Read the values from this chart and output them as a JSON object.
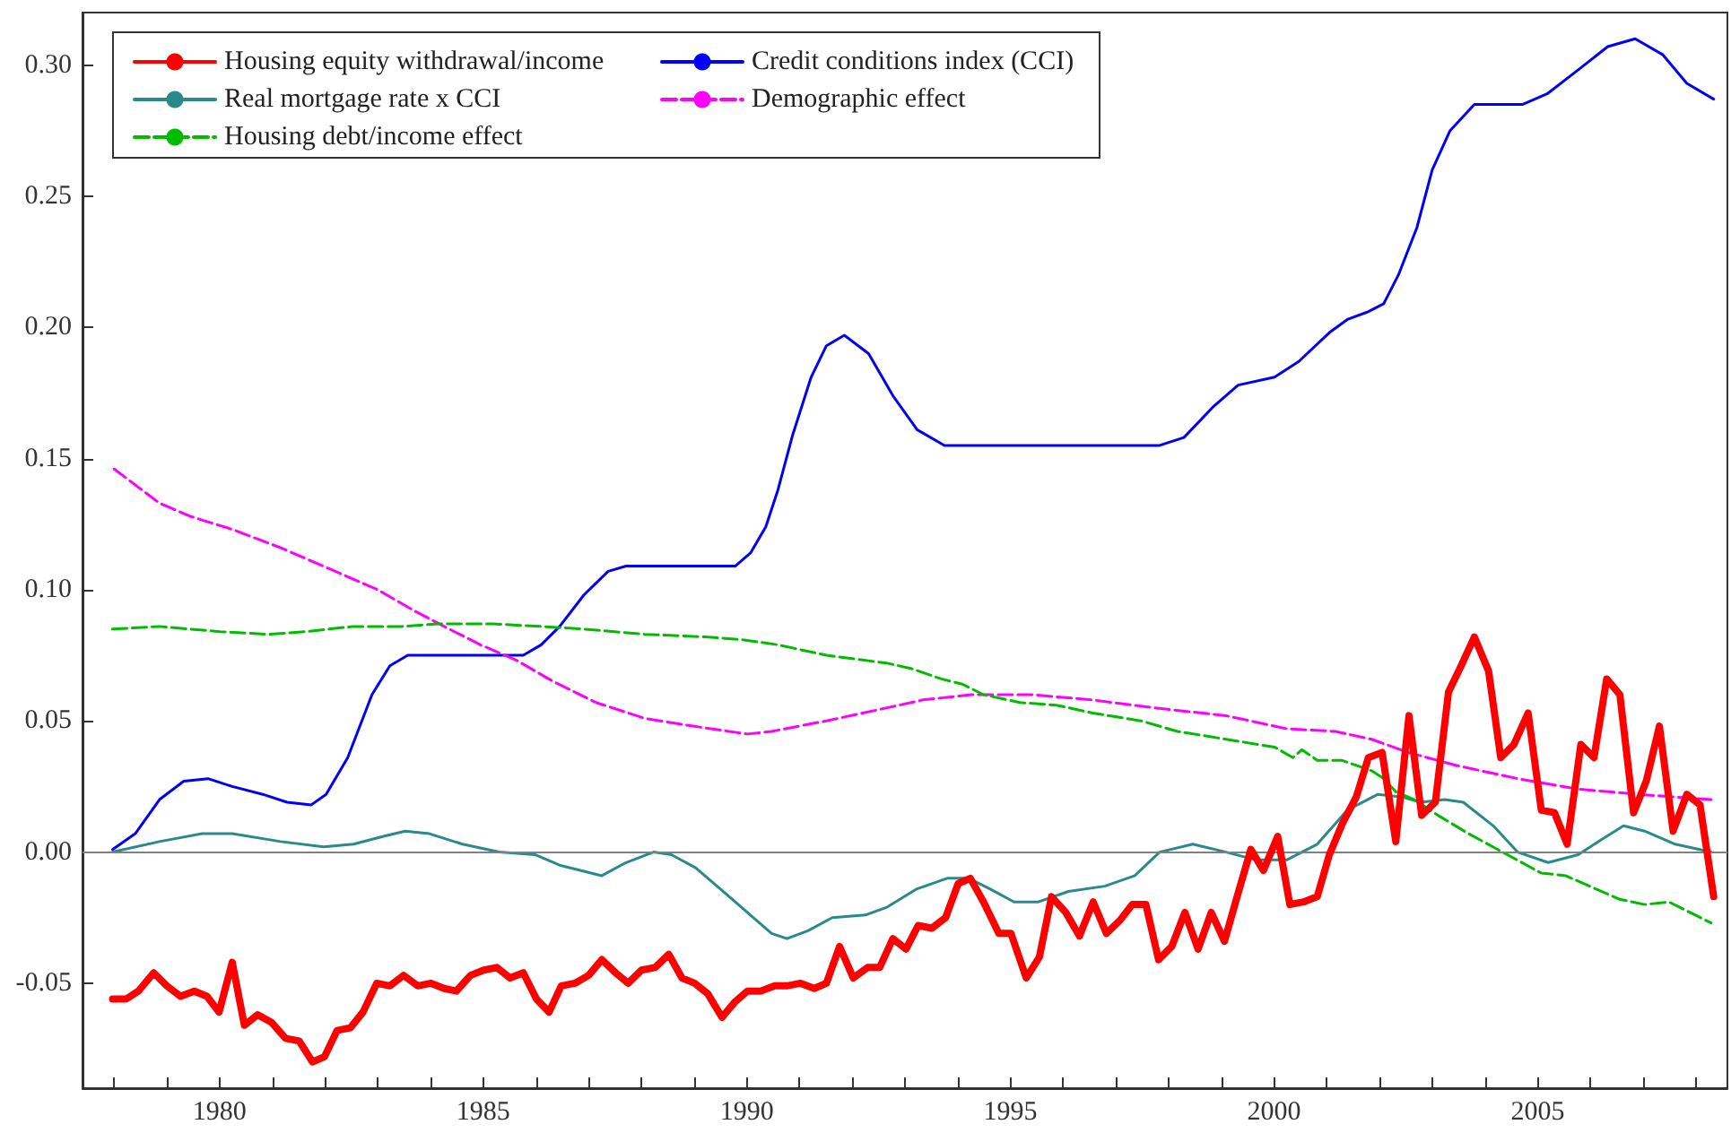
{
  "chart_data": {
    "type": "line",
    "xlim": [
      1977.4,
      2008.6
    ],
    "xticks": [
      {
        "value": 1978,
        "label": null
      },
      {
        "value": 1979,
        "label": null
      },
      1980,
      {
        "value": 1981,
        "label": null
      },
      {
        "value": 1982,
        "label": null
      },
      {
        "value": 1983,
        "label": null
      },
      {
        "value": 1984,
        "label": null
      },
      1985,
      {
        "value": 1986,
        "label": null
      },
      {
        "value": 1987,
        "label": null
      },
      {
        "value": 1988,
        "label": null
      },
      {
        "value": 1989,
        "label": null
      },
      1990,
      {
        "value": 1991,
        "label": null
      },
      {
        "value": 1992,
        "label": null
      },
      {
        "value": 1993,
        "label": null
      },
      {
        "value": 1994,
        "label": null
      },
      1995,
      {
        "value": 1996,
        "label": null
      },
      {
        "value": 1997,
        "label": null
      },
      {
        "value": 1998,
        "label": null
      },
      {
        "value": 1999,
        "label": null
      },
      2000,
      {
        "value": 2001,
        "label": null
      },
      {
        "value": 2002,
        "label": null
      },
      {
        "value": 2003,
        "label": null
      },
      {
        "value": 2004,
        "label": null
      },
      2005,
      {
        "value": 2006,
        "label": null
      },
      {
        "value": 2007,
        "label": null
      },
      {
        "value": 2008,
        "label": null
      }
    ],
    "ylim": [
      -0.09,
      0.32
    ],
    "yticks": [
      {
        "value": -0.05,
        "label": "-0.05"
      },
      {
        "value": 0,
        "label": "0.00"
      },
      {
        "value": 0.05,
        "label": "0.05"
      },
      {
        "value": 0.1,
        "label": "0.10"
      },
      {
        "value": 0.15,
        "label": "0.15"
      },
      {
        "value": 0.2,
        "label": "0.20"
      },
      {
        "value": 0.25,
        "label": "0.25"
      },
      {
        "value": 0.3,
        "label": "0.30"
      }
    ],
    "grid": false,
    "legend": "top left",
    "marker": "none",
    "ref_lines": [
      {
        "axis": "y",
        "value": 0,
        "color": "#808080"
      }
    ],
    "series": [
      {
        "name": "Housing equity withdrawal/income",
        "color": "#ff0000",
        "line_style": "solid",
        "x": [
          1977.97,
          1978.23,
          1978.46,
          1978.75,
          1979.0,
          1979.26,
          1979.52,
          1979.76,
          1979.99,
          1980.24,
          1980.47,
          1980.72,
          1980.99,
          1981.25,
          1981.51,
          1981.76,
          1981.99,
          1982.23,
          1982.48,
          1982.72,
          1982.98,
          1983.23,
          1983.49,
          1983.76,
          1984.01,
          1984.26,
          1984.49,
          1984.76,
          1985.01,
          1985.26,
          1985.51,
          1985.76,
          1986.01,
          1986.25,
          1986.48,
          1986.74,
          1987.0,
          1987.25,
          1987.51,
          1987.75,
          1988.0,
          1988.26,
          1988.52,
          1988.77,
          1989.01,
          1989.26,
          1989.53,
          1989.78,
          1990.01,
          1990.26,
          1990.53,
          1990.76,
          1991.02,
          1991.28,
          1991.51,
          1991.76,
          1992.02,
          1992.29,
          1992.52,
          1992.77,
          1993.02,
          1993.25,
          1993.51,
          1993.77,
          1994.01,
          1994.24,
          1994.49,
          1994.78,
          1995.01,
          1995.3,
          1995.55,
          1995.78,
          1996.05,
          1996.31,
          1996.57,
          1996.82,
          1997.08,
          1997.31,
          1997.57,
          1997.81,
          1998.06,
          1998.31,
          1998.56,
          1998.81,
          1999.06,
          1999.3,
          1999.56,
          1999.8,
          2000.07,
          2000.3,
          2000.56,
          2000.82,
          2001.05,
          2001.3,
          2001.56,
          2001.79,
          2002.05,
          2002.31,
          2002.56,
          2002.8,
          2003.06,
          2003.31,
          2003.55,
          2003.8,
          2004.07,
          2004.3,
          2004.55,
          2004.82,
          2005.07,
          2005.32,
          2005.56,
          2005.82,
          2006.07,
          2006.31,
          2006.56,
          2006.82,
          2007.06,
          2007.31,
          2007.57,
          2007.83,
          2008.08,
          2008.34
        ],
        "values": [
          -0.056,
          -0.056,
          -0.053,
          -0.046,
          -0.051,
          -0.055,
          -0.053,
          -0.055,
          -0.061,
          -0.042,
          -0.066,
          -0.062,
          -0.065,
          -0.071,
          -0.072,
          -0.08,
          -0.078,
          -0.068,
          -0.067,
          -0.061,
          -0.05,
          -0.051,
          -0.047,
          -0.051,
          -0.05,
          -0.052,
          -0.053,
          -0.047,
          -0.045,
          -0.044,
          -0.048,
          -0.046,
          -0.056,
          -0.061,
          -0.051,
          -0.05,
          -0.047,
          -0.041,
          -0.046,
          -0.05,
          -0.045,
          -0.044,
          -0.039,
          -0.048,
          -0.05,
          -0.054,
          -0.063,
          -0.057,
          -0.053,
          -0.053,
          -0.051,
          -0.051,
          -0.05,
          -0.052,
          -0.05,
          -0.036,
          -0.048,
          -0.044,
          -0.044,
          -0.033,
          -0.037,
          -0.028,
          -0.029,
          -0.025,
          -0.012,
          -0.01,
          -0.019,
          -0.031,
          -0.031,
          -0.048,
          -0.04,
          -0.017,
          -0.023,
          -0.032,
          -0.019,
          -0.031,
          -0.026,
          -0.02,
          -0.02,
          -0.041,
          -0.036,
          -0.023,
          -0.037,
          -0.023,
          -0.034,
          -0.017,
          0.001,
          -0.007,
          0.006,
          -0.02,
          -0.019,
          -0.017,
          -0.001,
          0.011,
          0.021,
          0.036,
          0.038,
          0.004,
          0.052,
          0.014,
          0.019,
          0.061,
          0.071,
          0.082,
          0.069,
          0.036,
          0.041,
          0.053,
          0.016,
          0.015,
          0.003,
          0.041,
          0.036,
          0.066,
          0.06,
          0.015,
          0.027,
          0.048,
          0.008,
          0.022,
          0.018,
          -0.017
        ]
      },
      {
        "name": "Credit conditions index (CCI)",
        "color": "#0000ff",
        "line_style": "solid",
        "x": [
          1977.97,
          1978.4,
          1978.86,
          1979.32,
          1979.78,
          1980.24,
          1980.82,
          1981.28,
          1981.74,
          1982.02,
          1982.43,
          1982.89,
          1983.23,
          1983.57,
          1984.15,
          1985.76,
          1986.1,
          1986.45,
          1986.91,
          1987.37,
          1987.71,
          1989.78,
          1990.07,
          1990.36,
          1990.59,
          1990.87,
          1991.22,
          1991.51,
          1991.85,
          1992.31,
          1992.77,
          1993.23,
          1993.75,
          1997.83,
          1998.29,
          1998.86,
          1999.32,
          2000.01,
          2000.47,
          2001.05,
          2001.39,
          2001.79,
          2002.08,
          2002.36,
          2002.71,
          2003.0,
          2003.34,
          2003.8,
          2004.72,
          2005.18,
          2005.76,
          2006.33,
          2006.85,
          2007.37,
          2007.83,
          2008.34
        ],
        "values": [
          0.001,
          0.007,
          0.02,
          0.027,
          0.028,
          0.025,
          0.022,
          0.019,
          0.018,
          0.022,
          0.036,
          0.06,
          0.071,
          0.075,
          0.075,
          0.075,
          0.079,
          0.086,
          0.098,
          0.107,
          0.109,
          0.109,
          0.114,
          0.124,
          0.138,
          0.159,
          0.181,
          0.193,
          0.197,
          0.19,
          0.174,
          0.161,
          0.155,
          0.155,
          0.158,
          0.17,
          0.178,
          0.181,
          0.187,
          0.198,
          0.203,
          0.206,
          0.209,
          0.22,
          0.238,
          0.26,
          0.275,
          0.285,
          0.285,
          0.289,
          0.298,
          0.307,
          0.31,
          0.304,
          0.293,
          0.287
        ]
      },
      {
        "name": "Real mortgage rate x CCI",
        "color": "#2a8a8a",
        "line_style": "solid",
        "x": [
          1977.97,
          1978.86,
          1979.67,
          1980.24,
          1981.16,
          1981.97,
          1982.54,
          1983.11,
          1983.52,
          1983.98,
          1984.61,
          1985.3,
          1985.99,
          1986.45,
          1987.25,
          1987.71,
          1988.23,
          1988.57,
          1989.03,
          1989.55,
          1990.01,
          1990.47,
          1990.76,
          1991.16,
          1991.62,
          1992.25,
          1992.66,
          1993.23,
          1993.8,
          1994.21,
          1994.61,
          1995.07,
          1995.53,
          1996.1,
          1996.79,
          1997.36,
          1997.83,
          1998.46,
          1999.09,
          1999.66,
          2000.24,
          2000.82,
          2001.39,
          2001.97,
          2002.43,
          2002.78,
          2003.24,
          2003.59,
          2004.16,
          2004.62,
          2005.2,
          2005.77,
          2006.23,
          2006.63,
          2007.03,
          2007.61,
          2008.29
        ],
        "values": [
          0.0,
          0.004,
          0.007,
          0.007,
          0.004,
          0.002,
          0.003,
          0.006,
          0.008,
          0.007,
          0.003,
          0.0,
          -0.001,
          -0.005,
          -0.009,
          -0.004,
          0.0,
          -0.001,
          -0.006,
          -0.015,
          -0.023,
          -0.031,
          -0.033,
          -0.03,
          -0.025,
          -0.024,
          -0.021,
          -0.014,
          -0.01,
          -0.01,
          -0.014,
          -0.019,
          -0.019,
          -0.015,
          -0.013,
          -0.009,
          0.0,
          0.003,
          0.0,
          -0.003,
          -0.003,
          0.003,
          0.016,
          0.022,
          0.021,
          0.019,
          0.02,
          0.019,
          0.01,
          0.0,
          -0.004,
          -0.001,
          0.005,
          0.01,
          0.008,
          0.003,
          0.0
        ]
      },
      {
        "name": "Demographic effect",
        "color": "#ff00ff",
        "line_style": "dashed",
        "x": [
          1978.0,
          1978.86,
          1979.44,
          1980.24,
          1981.16,
          1982.08,
          1983.0,
          1983.69,
          1984.26,
          1984.95,
          1985.64,
          1986.33,
          1987.14,
          1988.06,
          1988.98,
          1990.01,
          1990.47,
          1991.51,
          1992.66,
          1993.34,
          1994.26,
          1995.41,
          1996.56,
          1997.71,
          1999.09,
          2000.24,
          2001.16,
          2001.85,
          2002.54,
          2003.46,
          2004.62,
          2005.77,
          2006.92,
          2008.29
        ],
        "values": [
          0.146,
          0.133,
          0.128,
          0.123,
          0.116,
          0.108,
          0.1,
          0.092,
          0.086,
          0.079,
          0.073,
          0.065,
          0.057,
          0.051,
          0.048,
          0.045,
          0.046,
          0.05,
          0.055,
          0.058,
          0.06,
          0.06,
          0.058,
          0.055,
          0.052,
          0.047,
          0.046,
          0.043,
          0.038,
          0.033,
          0.028,
          0.024,
          0.022,
          0.02
        ]
      },
      {
        "name": "Housing debt/income effect",
        "color": "#00bb00",
        "line_style": "dashed",
        "x": [
          1977.97,
          1978.86,
          1980.01,
          1980.93,
          1981.62,
          1982.54,
          1983.46,
          1984.15,
          1985.18,
          1986.1,
          1986.91,
          1988.06,
          1989.21,
          1989.9,
          1990.59,
          1991.51,
          1992.66,
          1993.11,
          1993.69,
          1994.09,
          1994.49,
          1995.18,
          1995.87,
          1996.56,
          1997.48,
          1998.17,
          1999.09,
          2000.01,
          2000.36,
          2000.53,
          2000.82,
          2001.28,
          2001.85,
          2002.08,
          2002.31,
          2002.66,
          2003.11,
          2003.69,
          2004.15,
          2004.61,
          2005.07,
          2005.53,
          2006.1,
          2006.56,
          2007.03,
          2007.49,
          2008.29
        ],
        "values": [
          0.085,
          0.086,
          0.084,
          0.083,
          0.084,
          0.086,
          0.086,
          0.087,
          0.087,
          0.086,
          0.085,
          0.083,
          0.082,
          0.081,
          0.079,
          0.075,
          0.072,
          0.07,
          0.066,
          0.064,
          0.06,
          0.057,
          0.056,
          0.053,
          0.05,
          0.046,
          0.043,
          0.04,
          0.036,
          0.039,
          0.035,
          0.035,
          0.031,
          0.028,
          0.023,
          0.02,
          0.014,
          0.007,
          0.002,
          -0.003,
          -0.008,
          -0.009,
          -0.014,
          -0.018,
          -0.02,
          -0.019,
          -0.027
        ]
      }
    ]
  }
}
